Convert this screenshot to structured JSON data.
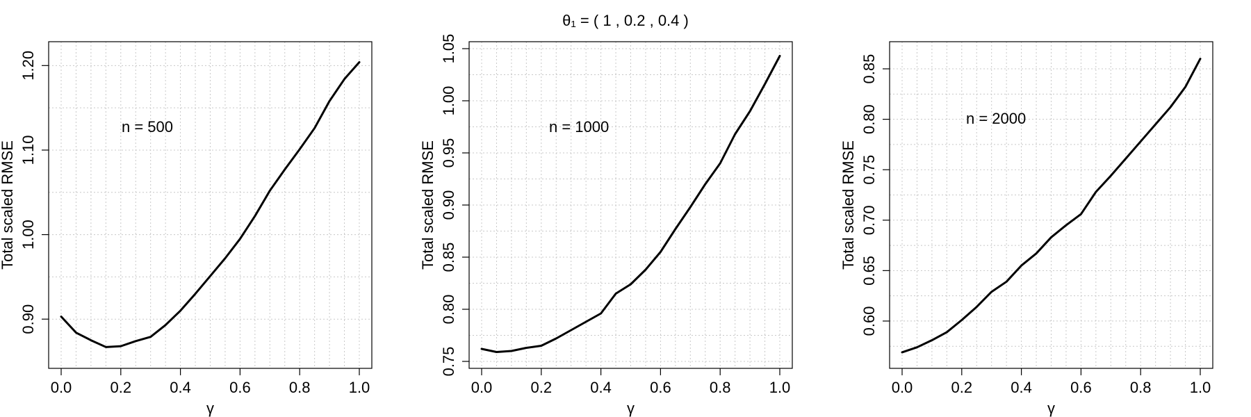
{
  "figure_title": "θ₁ = ( 1 , 0.2 , 0.4 )",
  "chart_data": [
    {
      "type": "line",
      "annotation": "n = 500",
      "xlabel": "γ",
      "ylabel": "Total scaled RMSE",
      "xlim": [
        0,
        1
      ],
      "ylim": [
        0.85,
        1.22
      ],
      "x_ticks": [
        "0.0",
        "0.2",
        "0.4",
        "0.6",
        "0.8",
        "1.0"
      ],
      "y_ticks": [
        "0.90",
        "1.00",
        "1.10",
        "1.20"
      ],
      "grid": true,
      "series": [
        {
          "x": [
            0,
            0.05,
            0.1,
            0.15,
            0.2,
            0.25,
            0.3,
            0.35,
            0.4,
            0.45,
            0.5,
            0.55,
            0.6,
            0.65,
            0.7,
            0.75,
            0.8,
            0.85,
            0.9,
            0.95,
            1
          ],
          "values": [
            0.903,
            0.884,
            0.875,
            0.867,
            0.868,
            0.874,
            0.879,
            0.893,
            0.91,
            0.93,
            0.951,
            0.972,
            0.995,
            1.022,
            1.052,
            1.077,
            1.101,
            1.126,
            1.158,
            1.184,
            1.204
          ]
        }
      ]
    },
    {
      "type": "line",
      "annotation": "n = 1000",
      "xlabel": "γ",
      "ylabel": "Total scaled RMSE",
      "xlim": [
        0,
        1
      ],
      "ylim": [
        0.75,
        1.05
      ],
      "x_ticks": [
        "0.0",
        "0.2",
        "0.4",
        "0.6",
        "0.8",
        "1.0"
      ],
      "y_ticks": [
        "0.75",
        "0.80",
        "0.85",
        "0.90",
        "0.95",
        "1.00",
        "1.05"
      ],
      "grid": true,
      "series": [
        {
          "x": [
            0,
            0.05,
            0.1,
            0.15,
            0.2,
            0.25,
            0.3,
            0.35,
            0.4,
            0.45,
            0.5,
            0.55,
            0.6,
            0.65,
            0.7,
            0.75,
            0.8,
            0.85,
            0.9,
            0.95,
            1
          ],
          "values": [
            0.762,
            0.759,
            0.76,
            0.763,
            0.765,
            0.772,
            0.78,
            0.788,
            0.796,
            0.815,
            0.824,
            0.838,
            0.855,
            0.877,
            0.898,
            0.92,
            0.94,
            0.968,
            0.99,
            1.016,
            1.043
          ]
        }
      ]
    },
    {
      "type": "line",
      "annotation": "n = 2000",
      "xlabel": "γ",
      "ylabel": "Total scaled RMSE",
      "xlim": [
        0,
        1
      ],
      "ylim": [
        0.56,
        0.87
      ],
      "x_ticks": [
        "0.0",
        "0.2",
        "0.4",
        "0.6",
        "0.8",
        "1.0"
      ],
      "y_ticks": [
        "0.60",
        "0.65",
        "0.70",
        "0.75",
        "0.80",
        "0.85"
      ],
      "grid": true,
      "series": [
        {
          "x": [
            0,
            0.05,
            0.1,
            0.15,
            0.2,
            0.25,
            0.3,
            0.35,
            0.4,
            0.45,
            0.5,
            0.55,
            0.6,
            0.65,
            0.7,
            0.75,
            0.8,
            0.85,
            0.9,
            0.95,
            1
          ],
          "values": [
            0.569,
            0.574,
            0.581,
            0.589,
            0.601,
            0.614,
            0.629,
            0.639,
            0.655,
            0.667,
            0.683,
            0.695,
            0.706,
            0.728,
            0.744,
            0.761,
            0.778,
            0.795,
            0.812,
            0.832,
            0.86
          ]
        }
      ]
    }
  ]
}
